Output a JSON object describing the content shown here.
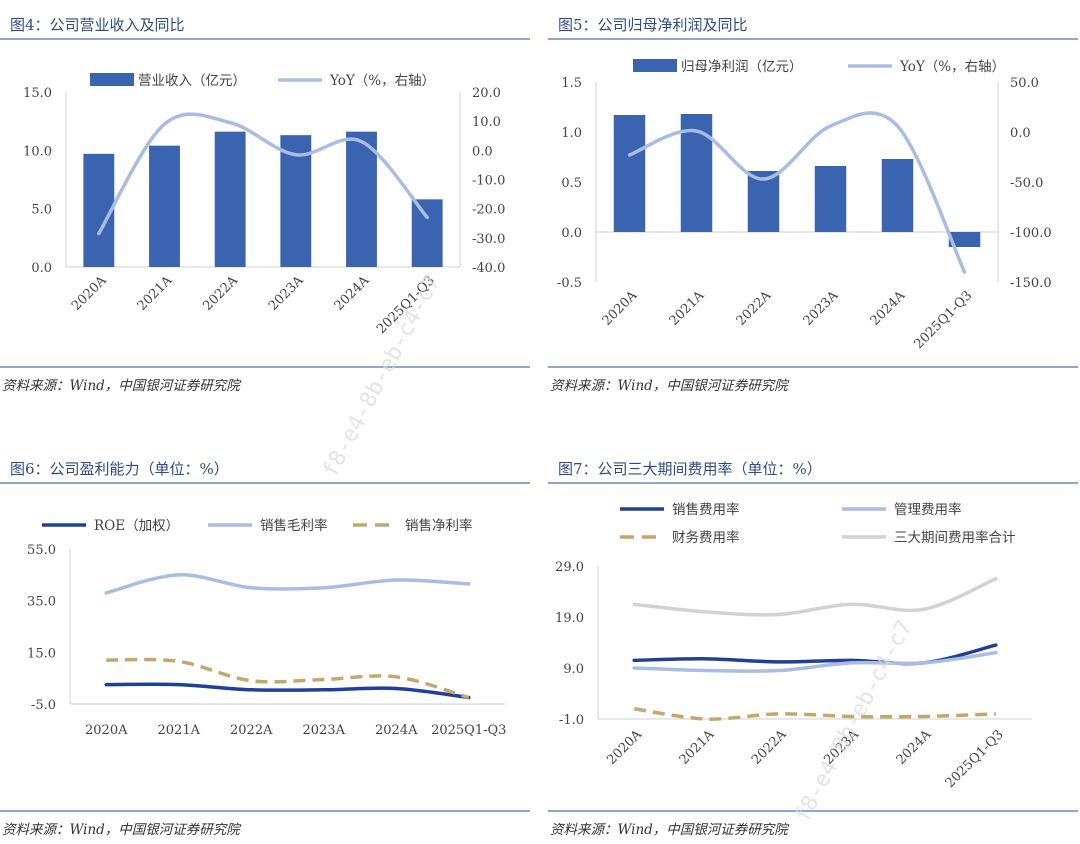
{
  "source": "资料来源：Wind，中国银河证券研究院",
  "watermark": "f8-e4-8b-eb-c4-c7",
  "colors": {
    "dark": "#1f3f9a",
    "bar": "#3a63b0",
    "light": "#a9bde3",
    "gold": "#c7a66d",
    "gray": "#d2d2d2",
    "title": "#2d4c8c"
  },
  "chart_data": [
    {
      "type": "bar+line",
      "title": "图4：公司营业收入及同比",
      "categories": [
        "2020A",
        "2021A",
        "2022A",
        "2023A",
        "2024A",
        "2025Q1-Q3"
      ],
      "series": [
        {
          "name": "营业收入（亿元）",
          "kind": "bar",
          "axis": "left",
          "values": [
            9.7,
            10.4,
            11.6,
            11.3,
            11.6,
            5.8
          ]
        },
        {
          "name": "YoY（%，右轴）",
          "kind": "line",
          "axis": "right",
          "values": [
            -28.5,
            9.0,
            9.5,
            -1.5,
            3.0,
            -23.0
          ]
        }
      ],
      "ylim": [
        0,
        15
      ],
      "yticks": [
        "15.0",
        "10.0",
        "5.0",
        "0.0"
      ],
      "y2lim": [
        -40,
        20
      ],
      "y2ticks": [
        "20.0",
        "10.0",
        "0.0",
        "-10.0",
        "-20.0",
        "-30.0",
        "-40.0"
      ]
    },
    {
      "type": "bar+line",
      "title": "图5：公司归母净利润及同比",
      "categories": [
        "2020A",
        "2021A",
        "2022A",
        "2023A",
        "2024A",
        "2025Q1-Q3"
      ],
      "series": [
        {
          "name": "归母净利润（亿元）",
          "kind": "bar",
          "axis": "left",
          "values": [
            1.17,
            1.18,
            0.61,
            0.66,
            0.73,
            -0.15
          ]
        },
        {
          "name": "YoY（%，右轴）",
          "kind": "line",
          "axis": "right",
          "values": [
            -23,
            1,
            -47,
            6,
            6,
            -140
          ]
        }
      ],
      "ylim": [
        -0.5,
        1.5
      ],
      "yticks": [
        "1.5",
        "1.0",
        "0.5",
        "0.0",
        "-0.5"
      ],
      "y2lim": [
        -150,
        50
      ],
      "y2ticks": [
        "50.0",
        "0.0",
        "-50.0",
        "-100.0",
        "-150.0"
      ]
    },
    {
      "type": "line",
      "title": "图6：公司盈利能力（单位：%）",
      "categories": [
        "2020A",
        "2021A",
        "2022A",
        "2023A",
        "2024A",
        "2025Q1-Q3"
      ],
      "series": [
        {
          "name": "ROE（加权）",
          "style": "dark",
          "values": [
            2.5,
            2.5,
            0.5,
            0.5,
            1.0,
            -2.5
          ]
        },
        {
          "name": "销售毛利率",
          "style": "light",
          "values": [
            38,
            45,
            40,
            40,
            43,
            41.5
          ]
        },
        {
          "name": "销售净利率",
          "style": "gold-dash",
          "values": [
            12,
            11.5,
            4,
            4.5,
            5.5,
            -2.5
          ]
        }
      ],
      "ylim": [
        -5,
        55
      ],
      "yticks": [
        "55.0",
        "35.0",
        "15.0",
        "-5.0"
      ]
    },
    {
      "type": "line",
      "title": "图7：公司三大期间费用率（单位：%）",
      "categories": [
        "2020A",
        "2021A",
        "2022A",
        "2023A",
        "2024A",
        "2025Q1-Q3"
      ],
      "series": [
        {
          "name": "销售费用率",
          "style": "dark",
          "values": [
            10.5,
            10.8,
            10.2,
            10.5,
            10.0,
            13.5
          ]
        },
        {
          "name": "管理费用率",
          "style": "light",
          "values": [
            9.0,
            8.5,
            8.5,
            10.0,
            10.0,
            12.0
          ]
        },
        {
          "name": "财务费用率",
          "style": "gold-dash",
          "values": [
            1.0,
            -1.0,
            0.0,
            -0.5,
            -0.5,
            0.0
          ]
        },
        {
          "name": "三大期间费用率合计",
          "style": "gray",
          "values": [
            21.5,
            20.0,
            19.5,
            21.5,
            20.5,
            26.5
          ]
        }
      ],
      "ylim": [
        -1,
        29
      ],
      "yticks": [
        "29.0",
        "19.0",
        "9.0",
        "-1.0"
      ]
    }
  ]
}
